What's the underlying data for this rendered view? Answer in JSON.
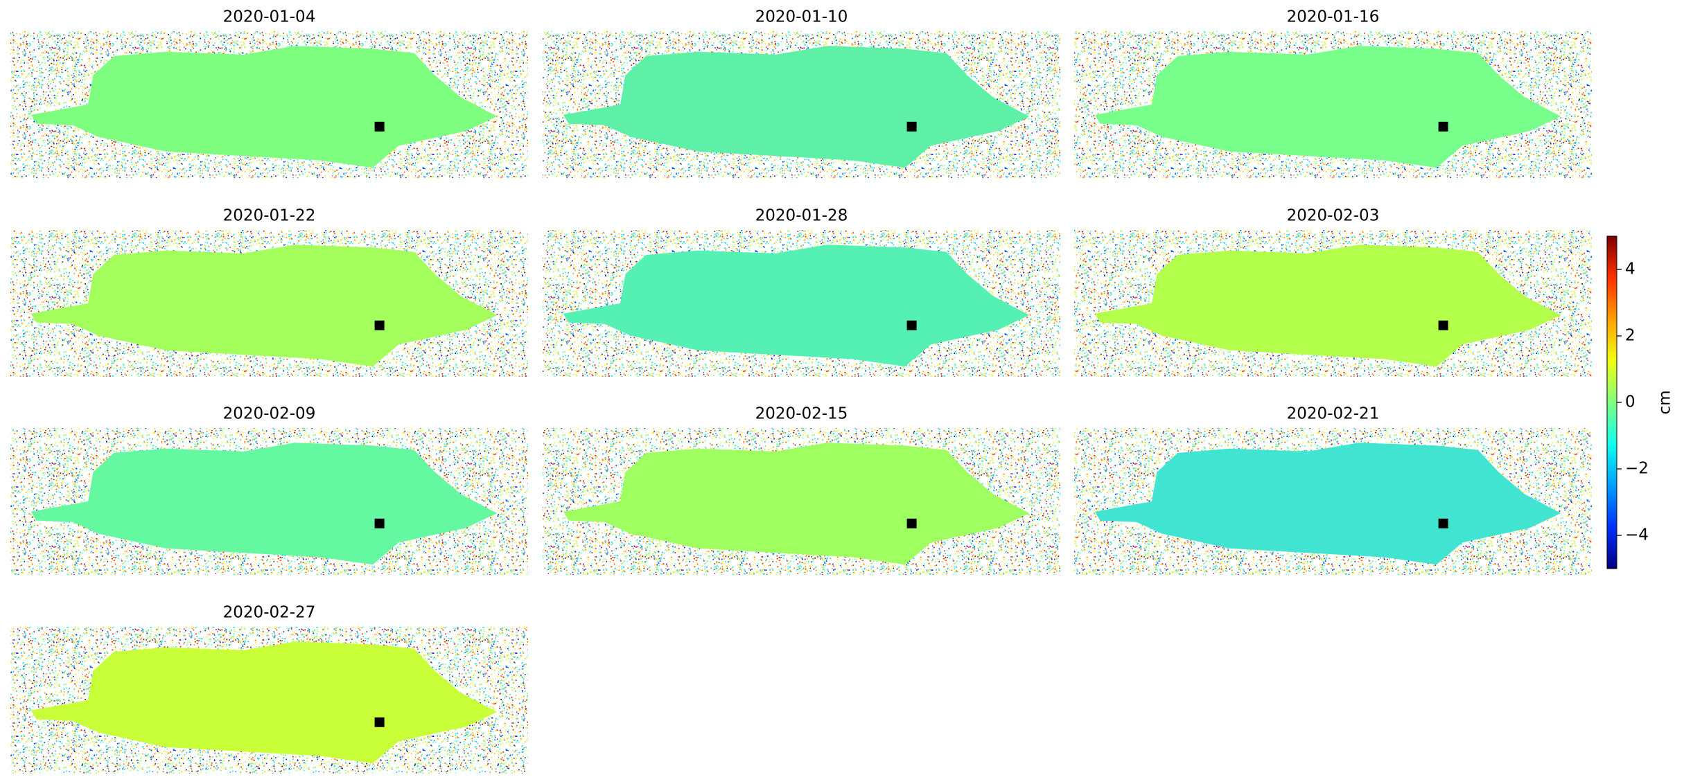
{
  "chart_data": {
    "type": "image-grid",
    "panels": [
      {
        "title": "2020-01-04",
        "color": "#7fff7f"
      },
      {
        "title": "2020-01-10",
        "color": "#5ff0a8"
      },
      {
        "title": "2020-01-16",
        "color": "#78ff8c"
      },
      {
        "title": "2020-01-22",
        "color": "#a4ff5c"
      },
      {
        "title": "2020-01-28",
        "color": "#55f0b4"
      },
      {
        "title": "2020-02-03",
        "color": "#b4ff4c"
      },
      {
        "title": "2020-02-09",
        "color": "#64f8a0"
      },
      {
        "title": "2020-02-15",
        "color": "#a0ff60"
      },
      {
        "title": "2020-02-21",
        "color": "#40e4d0"
      },
      {
        "title": "2020-02-27",
        "color": "#c8ff38"
      }
    ],
    "colorbar": {
      "label": "cm",
      "colormap": "jet",
      "ylim": [
        -5,
        5
      ],
      "yticks": [
        {
          "value": -4,
          "label": "−4"
        },
        {
          "value": -2,
          "label": "−2"
        },
        0,
        2,
        4
      ]
    }
  }
}
